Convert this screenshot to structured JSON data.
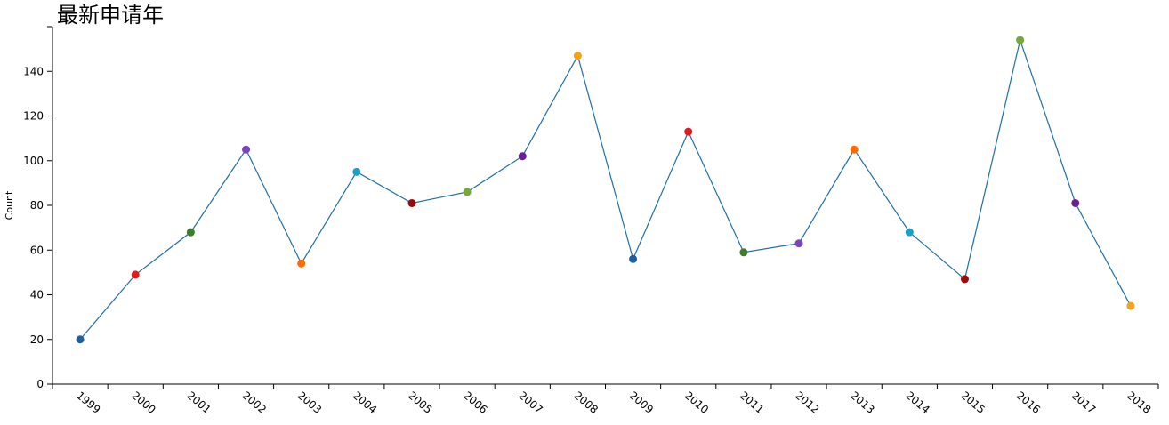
{
  "chart_data": {
    "type": "line",
    "title": "最新申请年",
    "xlabel": "",
    "ylabel": "Count",
    "ylim": [
      0,
      160
    ],
    "yticks": [
      0,
      20,
      40,
      60,
      80,
      100,
      120,
      140
    ],
    "categories": [
      "1999",
      "2000",
      "2001",
      "2002",
      "2003",
      "2004",
      "2005",
      "2006",
      "2007",
      "2008",
      "2009",
      "2010",
      "2011",
      "2012",
      "2013",
      "2014",
      "2015",
      "2016",
      "2017",
      "2018"
    ],
    "series": [
      {
        "values": [
          20,
          49,
          68,
          105,
          54,
          95,
          81,
          86,
          102,
          147,
          56,
          113,
          59,
          63,
          105,
          68,
          47,
          154,
          81,
          35
        ],
        "line_color": "#1f6fa7"
      }
    ],
    "point_colors": [
      "#1f5fa0",
      "#e01b1b",
      "#3e7d2b",
      "#7a44bd",
      "#ff6a00",
      "#1a9fc9",
      "#9a0a0a",
      "#76a83a",
      "#6a1f9a",
      "#f5a11a",
      "#1f5fa0",
      "#e01b1b",
      "#3e7d2b",
      "#7a44bd",
      "#ff6a00",
      "#1a9fc9",
      "#9a0a0a",
      "#76a83a",
      "#6a1f9a",
      "#f5a11a"
    ],
    "grid": false,
    "legend": "none"
  }
}
